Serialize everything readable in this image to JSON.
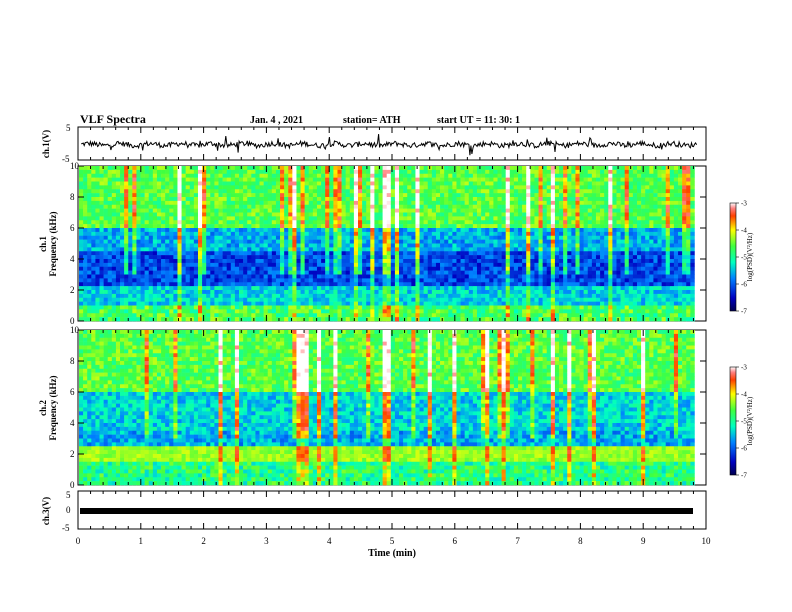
{
  "header": {
    "title": "VLF Spectra",
    "date": "Jan. 4 , 2021",
    "station": "station= ATH",
    "start": "start UT =  11: 30: 1"
  },
  "chart_data": [
    {
      "type": "line",
      "name": "ch1-waveform",
      "ylabel": "ch.1(V)",
      "ylim": [
        -5,
        5
      ],
      "yticks": [
        "5",
        "-5"
      ],
      "xlim": [
        0,
        10
      ],
      "note": "noisy waveform around 0 V, data ends near 9.8 min"
    },
    {
      "type": "heatmap",
      "name": "ch1-spectrogram",
      "ylabel": "ch.1\nFrequency (kHz)",
      "ylim": [
        0,
        10
      ],
      "yticks": [
        "0",
        "2",
        "4",
        "6",
        "8",
        "10"
      ],
      "xlim": [
        0,
        10
      ],
      "colorbar": {
        "label": "log(PSD)(V²/Hz)",
        "range": [
          -7,
          -3
        ],
        "ticks": [
          "-3",
          "-4",
          "-5",
          "-6",
          "-7"
        ]
      }
    },
    {
      "type": "heatmap",
      "name": "ch2-spectrogram",
      "ylabel": "ch.2\nFrequency (kHz)",
      "ylim": [
        0,
        10
      ],
      "yticks": [
        "0",
        "2",
        "4",
        "6",
        "8",
        "10"
      ],
      "xlim": [
        0,
        10
      ],
      "colorbar": {
        "label": "log(PSD)(V²/Hz)",
        "range": [
          -7,
          -3
        ],
        "ticks": [
          "-3",
          "-4",
          "-5",
          "-6",
          "-7"
        ]
      }
    },
    {
      "type": "line",
      "name": "ch3-waveform",
      "ylabel": "ch.3(V)",
      "ylim": [
        -5,
        5
      ],
      "yticks": [
        "5",
        "0",
        "-5"
      ],
      "xlim": [
        0,
        10
      ],
      "xlabel": "Time (min)",
      "xticks": [
        "0",
        "1",
        "2",
        "3",
        "4",
        "5",
        "6",
        "7",
        "8",
        "9",
        "10"
      ],
      "note": "thick flat band slightly below 0 V"
    }
  ],
  "labels": {
    "ch1_axis": "ch.1(V)",
    "ch1_spec_a": "ch.1",
    "ch1_spec_b": "Frequency (kHz)",
    "ch2_spec_a": "ch.2",
    "ch2_spec_b": "Frequency (kHz)",
    "ch3_axis": "ch.3(V)",
    "xlabel": "Time (min)",
    "cb1": "log(PSD)(V²/Hz)",
    "cb2": "log(PSD)(V²/Hz)"
  }
}
